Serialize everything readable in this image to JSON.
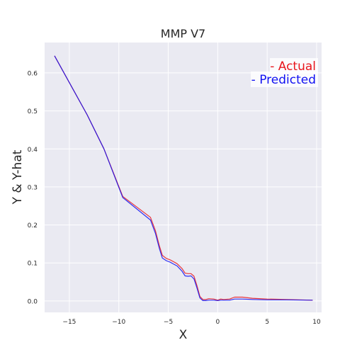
{
  "chart_data": {
    "type": "line",
    "title": "MMP V7",
    "xlabel": "X",
    "ylabel": "Y & Y-hat",
    "xlim": [
      -17.5,
      10.5
    ],
    "ylim": [
      -0.03,
      0.68
    ],
    "xticks": [
      -15,
      -10,
      -5,
      0,
      5,
      10
    ],
    "xtick_labels": [
      "−15",
      "−10",
      "−5",
      "0",
      "5",
      "10"
    ],
    "yticks": [
      0.0,
      0.1,
      0.2,
      0.3,
      0.4,
      0.5,
      0.6
    ],
    "ytick_labels": [
      "0.0",
      "0.1",
      "0.2",
      "0.3",
      "0.4",
      "0.5",
      "0.6"
    ],
    "grid": true,
    "background": "#eaeaf2",
    "legend_position": "top-right",
    "legend": [
      {
        "label": "- Actual",
        "color": "#e8151c"
      },
      {
        "label": "- Predicted",
        "color": "#1111f2"
      }
    ],
    "series": [
      {
        "name": "Actual",
        "color": "#e8151c",
        "x": [
          -16.5,
          -13.2,
          -11.5,
          -9.6,
          -6.8,
          -6.3,
          -5.9,
          -5.6,
          -5.2,
          -4.8,
          -4.1,
          -3.6,
          -3.3,
          -3.0,
          -2.7,
          -2.4,
          -2.1,
          -1.8,
          -1.5,
          -1.2,
          -0.9,
          -0.4,
          0.0,
          0.3,
          0.6,
          1.2,
          1.7,
          2.5,
          3.5,
          5.0,
          7.0,
          9.6
        ],
        "y": [
          0.645,
          0.49,
          0.4,
          0.275,
          0.22,
          0.185,
          0.145,
          0.12,
          0.112,
          0.108,
          0.098,
          0.085,
          0.073,
          0.072,
          0.072,
          0.065,
          0.04,
          0.012,
          0.004,
          0.004,
          0.006,
          0.005,
          0.002,
          0.005,
          0.004,
          0.005,
          0.01,
          0.01,
          0.007,
          0.005,
          0.004,
          0.002
        ]
      },
      {
        "name": "Predicted",
        "color": "#1111f2",
        "x": [
          -16.5,
          -13.2,
          -11.5,
          -9.6,
          -6.8,
          -6.3,
          -5.9,
          -5.6,
          -5.2,
          -4.8,
          -4.1,
          -3.6,
          -3.3,
          -3.0,
          -2.7,
          -2.4,
          -2.1,
          -1.8,
          -1.5,
          -1.2,
          -0.9,
          -0.4,
          0.0,
          0.3,
          0.6,
          1.2,
          1.7,
          2.5,
          3.5,
          5.0,
          7.0,
          9.6
        ],
        "y": [
          0.645,
          0.49,
          0.4,
          0.272,
          0.213,
          0.178,
          0.138,
          0.113,
          0.106,
          0.102,
          0.092,
          0.078,
          0.066,
          0.065,
          0.066,
          0.058,
          0.034,
          0.008,
          0.001,
          0.001,
          0.002,
          0.002,
          0.001,
          0.002,
          0.002,
          0.002,
          0.005,
          0.005,
          0.004,
          0.003,
          0.003,
          0.002
        ]
      }
    ]
  }
}
